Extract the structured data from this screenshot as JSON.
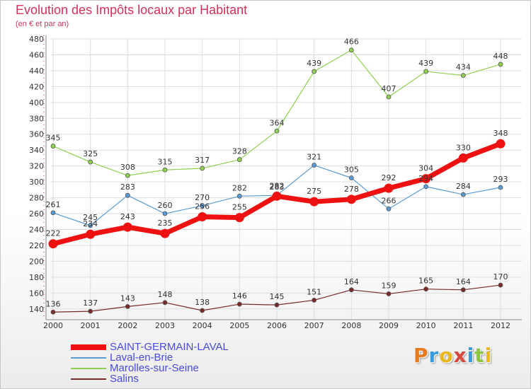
{
  "title": "Evolution des Impôts locaux par Habitant",
  "subtitle": "(en € et par an)",
  "logo": {
    "text": "Proxiti",
    "colors": [
      "#e87a1e",
      "#3a9ad9",
      "#e8b81e",
      "#d9463a",
      "#3a9ad9",
      "#8cc63f",
      "#e8b81e"
    ]
  },
  "chart_data": {
    "type": "line",
    "x": [
      "2000",
      "2001",
      "2002",
      "2003",
      "2004",
      "2005",
      "2006",
      "2007",
      "2008",
      "2009",
      "2010",
      "2011",
      "2012"
    ],
    "ylim": [
      130,
      480
    ],
    "yticks": [
      140,
      160,
      180,
      200,
      220,
      240,
      260,
      280,
      300,
      320,
      340,
      360,
      380,
      400,
      420,
      440,
      460,
      480
    ],
    "grid": true,
    "legend_position": "bottom-left",
    "series": [
      {
        "name": "Marolles-sur-Seine",
        "color": "#90d050",
        "width": 1.2,
        "values": [
          345,
          325,
          308,
          315,
          317,
          328,
          364,
          439,
          466,
          407,
          439,
          434,
          448
        ]
      },
      {
        "name": "Laval-en-Brie",
        "color": "#5a9bd5",
        "width": 1.2,
        "values": [
          261,
          245,
          283,
          260,
          270,
          282,
          283,
          321,
          305,
          266,
          294,
          284,
          293
        ]
      },
      {
        "name": "Salins",
        "color": "#7a2a2a",
        "width": 1.2,
        "values": [
          136,
          137,
          143,
          148,
          138,
          146,
          145,
          151,
          164,
          159,
          165,
          164,
          170
        ]
      },
      {
        "name": "SAINT-GERMAIN-LAVAL",
        "color": "#ee1111",
        "width": 7,
        "values": [
          222,
          234,
          243,
          235,
          256,
          255,
          282,
          275,
          278,
          292,
          304,
          330,
          348
        ]
      }
    ],
    "legend_order": [
      "SAINT-GERMAIN-LAVAL",
      "Laval-en-Brie",
      "Marolles-sur-Seine",
      "Salins"
    ]
  }
}
